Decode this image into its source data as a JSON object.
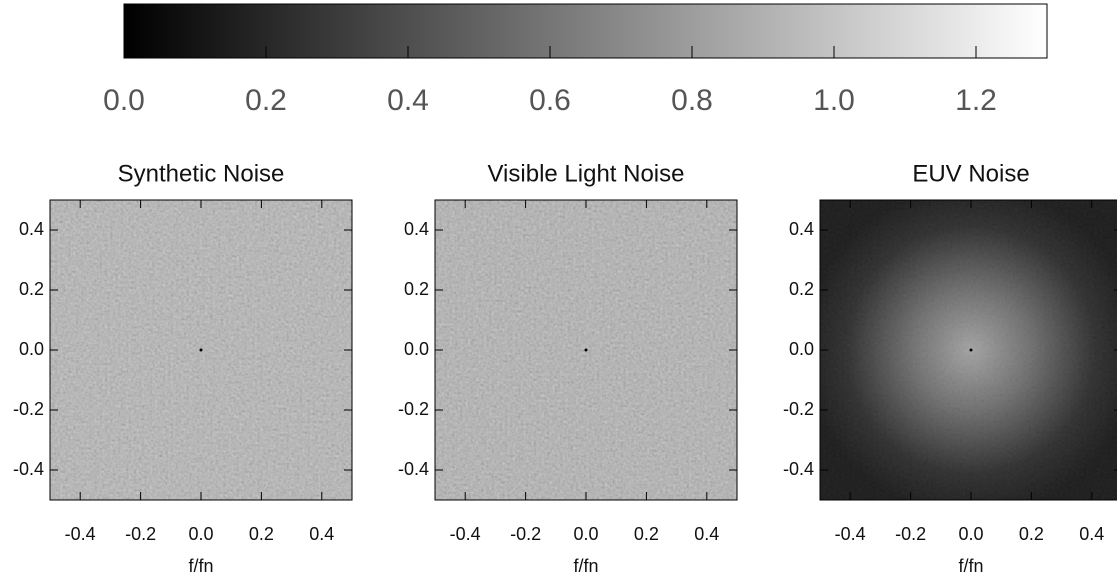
{
  "chart_data": [
    {
      "type": "colorbar",
      "clim": [
        0,
        1.3
      ],
      "ticks": [
        {
          "value": 0,
          "label": "0.0"
        },
        0.2,
        0.4,
        0.6,
        0.8,
        {
          "value": 1,
          "label": "1.0"
        },
        1.2
      ],
      "colors": [
        "#000000",
        "#ffffff"
      ]
    },
    {
      "type": "image",
      "title": "Synthetic Noise",
      "xlabel": "f/fn",
      "xlim": [
        -0.5,
        0.5
      ],
      "ylim": [
        -0.5,
        0.5
      ],
      "xticks": [
        -0.4,
        -0.2,
        {
          "value": 0,
          "label": "0.0"
        },
        0.2,
        0.4
      ],
      "yticks": [
        -0.4,
        -0.2,
        {
          "value": 0,
          "label": "0.0"
        },
        0.2,
        0.4
      ]
    },
    {
      "type": "image",
      "title": "Visible Light Noise",
      "xlabel": "f/fn",
      "xlim": [
        -0.5,
        0.5
      ],
      "ylim": [
        -0.5,
        0.5
      ],
      "xticks": [
        -0.4,
        -0.2,
        {
          "value": 0,
          "label": "0.0"
        },
        0.2,
        0.4
      ],
      "yticks": [
        -0.4,
        -0.2,
        {
          "value": 0,
          "label": "0.0"
        },
        0.2,
        0.4
      ]
    },
    {
      "type": "image",
      "title": "EUV Noise",
      "xlabel": "f/fn",
      "xlim": [
        -0.5,
        0.5
      ],
      "ylim": [
        -0.5,
        0.5
      ],
      "xticks": [
        -0.4,
        -0.2,
        {
          "value": 0,
          "label": "0.0"
        },
        0.2,
        0.4
      ],
      "yticks": [
        -0.4,
        -0.2,
        {
          "value": 0,
          "label": "0.0"
        },
        0.2,
        0.4
      ]
    }
  ]
}
